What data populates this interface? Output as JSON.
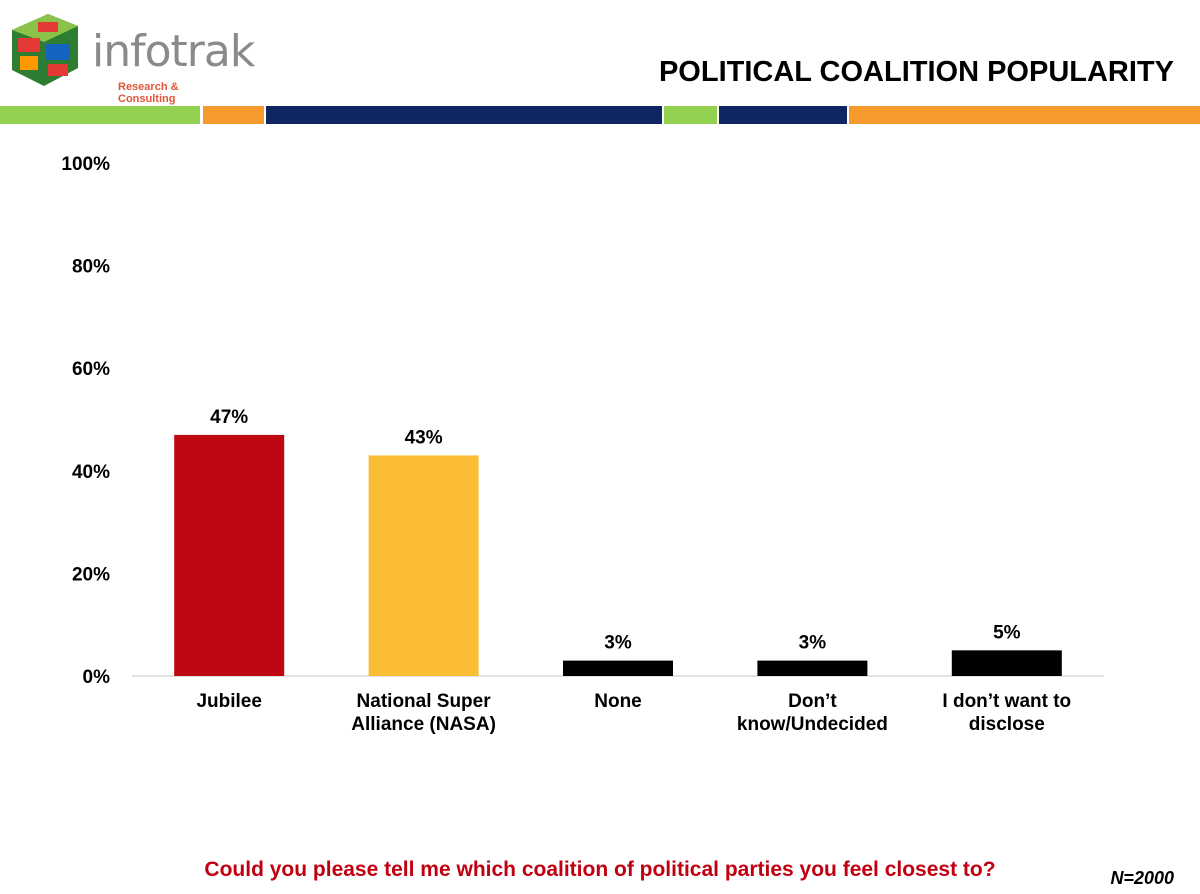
{
  "header": {
    "logo_name": "infotrak",
    "logo_tagline": "Research & Consulting",
    "title": "POLITICAL COALITION POPULARITY"
  },
  "colors": {
    "stripe": [
      "#92d050",
      "#f79a2e",
      "#0f2660",
      "#92d050",
      "#0f2660",
      "#f79a2e"
    ],
    "jubilee": "#be0712",
    "nasa": "#fbbd33",
    "other": "#000000",
    "question": "#c00010"
  },
  "chart_data": {
    "type": "bar",
    "categories": [
      "Jubilee",
      "National Super Alliance (NASA)",
      "None",
      "Don’t know/Undecided",
      "I don’t want to disclose"
    ],
    "category_lines": [
      [
        "Jubilee"
      ],
      [
        "National Super",
        "Alliance (NASA)"
      ],
      [
        "None"
      ],
      [
        "Don’t",
        "know/Undecided"
      ],
      [
        "I don’t want to",
        "disclose"
      ]
    ],
    "values": [
      47,
      43,
      3,
      3,
      5
    ],
    "data_labels": [
      "47%",
      "43%",
      "3%",
      "3%",
      "5%"
    ],
    "bar_colors": [
      "#be0712",
      "#fbbd33",
      "#000000",
      "#000000",
      "#000000"
    ],
    "ylim": [
      0,
      100
    ],
    "yticks": [
      0,
      20,
      40,
      60,
      80,
      100
    ],
    "ytick_labels": [
      "0%",
      "20%",
      "40%",
      "60%",
      "80%",
      "100%"
    ],
    "grid": false,
    "legend": "none"
  },
  "footer": {
    "question": "Could you please tell me which coalition of political parties you feel closest to?",
    "sample": "N=2000"
  }
}
